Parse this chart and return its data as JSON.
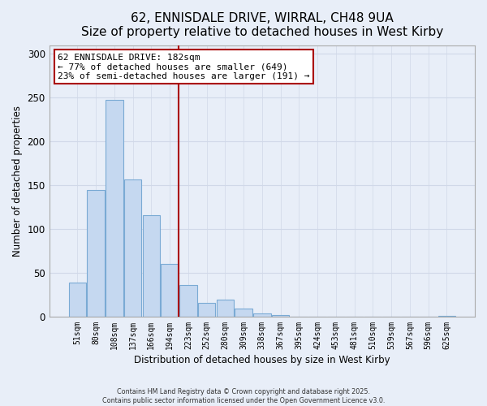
{
  "title": "62, ENNISDALE DRIVE, WIRRAL, CH48 9UA",
  "subtitle": "Size of property relative to detached houses in West Kirby",
  "xlabel": "Distribution of detached houses by size in West Kirby",
  "ylabel": "Number of detached properties",
  "bar_labels": [
    "51sqm",
    "80sqm",
    "108sqm",
    "137sqm",
    "166sqm",
    "194sqm",
    "223sqm",
    "252sqm",
    "280sqm",
    "309sqm",
    "338sqm",
    "367sqm",
    "395sqm",
    "424sqm",
    "453sqm",
    "481sqm",
    "510sqm",
    "539sqm",
    "567sqm",
    "596sqm",
    "625sqm"
  ],
  "bar_values": [
    39,
    145,
    247,
    157,
    116,
    60,
    36,
    16,
    19,
    9,
    4,
    2,
    0,
    0,
    0,
    0,
    0,
    0,
    0,
    0,
    1
  ],
  "bar_color": "#c5d8f0",
  "bar_edge_color": "#7aaad4",
  "vline_x": 5.5,
  "vline_color": "#aa0000",
  "annotation_title": "62 ENNISDALE DRIVE: 182sqm",
  "annotation_line1": "← 77% of detached houses are smaller (649)",
  "annotation_line2": "23% of semi-detached houses are larger (191) →",
  "annotation_box_color": "#ffffff",
  "annotation_box_edge": "#aa0000",
  "ylim": [
    0,
    310
  ],
  "yticks": [
    0,
    50,
    100,
    150,
    200,
    250,
    300
  ],
  "footnote1": "Contains HM Land Registry data © Crown copyright and database right 2025.",
  "footnote2": "Contains public sector information licensed under the Open Government Licence v3.0.",
  "bg_color": "#e8eef8",
  "plot_bg_color": "#e8eef8",
  "grid_color": "#d0d8e8",
  "title_fontsize": 11,
  "subtitle_fontsize": 9.5
}
